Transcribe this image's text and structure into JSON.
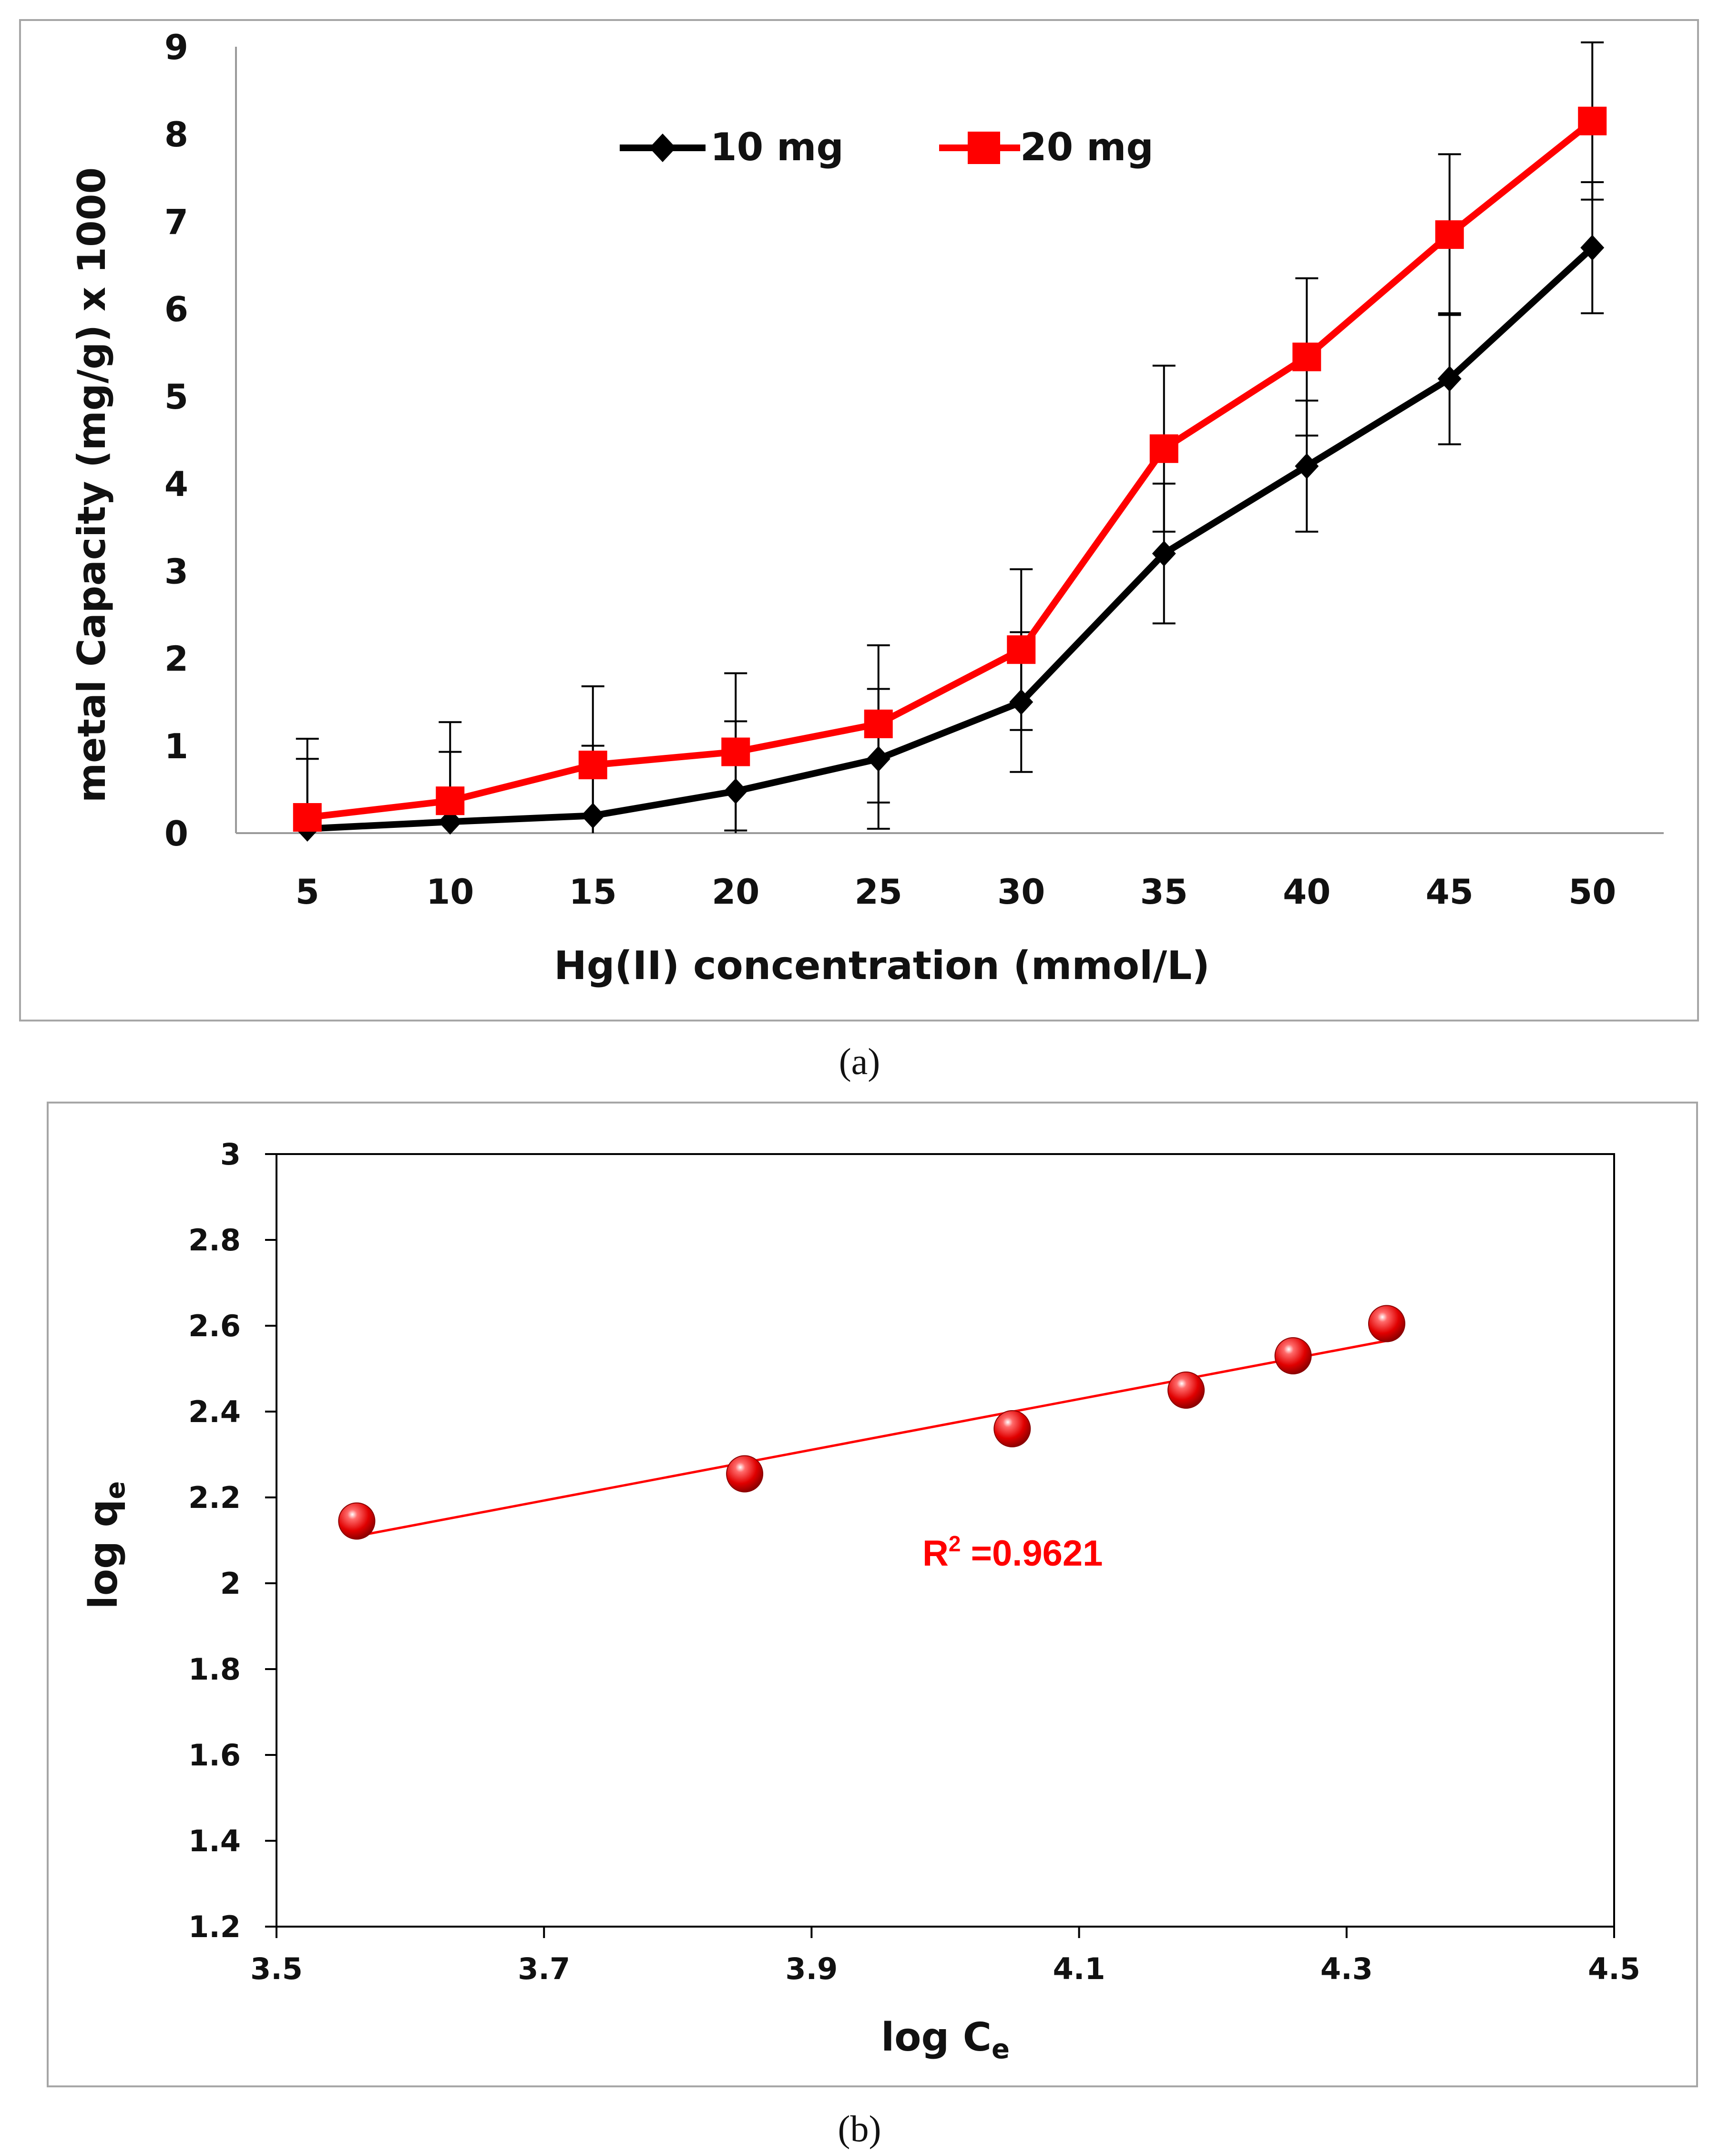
{
  "colors": {
    "series_10mg": "#000000",
    "series_20mg": "#ff0000",
    "fit_line": "#ff0000",
    "frame": "#a6a6a6",
    "grid_axis": "#9a9a9a"
  },
  "chart_data": [
    {
      "type": "line",
      "title": "",
      "xlabel": "Hg(II) concentration (mmol/L)",
      "ylabel": "metal Capacity (mg/g) x 1000",
      "categories": [
        "5",
        "10",
        "15",
        "20",
        "25",
        "30",
        "35",
        "40",
        "45",
        "50"
      ],
      "yticks": [
        "0",
        "1",
        "2",
        "3",
        "4",
        "5",
        "6",
        "7",
        "8",
        "9"
      ],
      "ylim": [
        0,
        9
      ],
      "legend_position": "top-center",
      "series": [
        {
          "name": "10 mg",
          "marker": "diamond",
          "values": [
            0.05,
            0.13,
            0.2,
            0.48,
            0.85,
            1.5,
            3.2,
            4.2,
            5.2,
            6.7
          ],
          "errors": [
            0.8,
            0.8,
            0.8,
            0.8,
            0.8,
            0.8,
            0.8,
            0.75,
            0.75,
            0.75
          ]
        },
        {
          "name": "20 mg",
          "marker": "square",
          "values": [
            0.18,
            0.37,
            0.78,
            0.93,
            1.25,
            2.1,
            4.4,
            5.45,
            6.85,
            8.15
          ],
          "errors": [
            0.9,
            0.9,
            0.9,
            0.9,
            0.9,
            0.92,
            0.95,
            0.9,
            0.92,
            0.9
          ]
        }
      ],
      "caption": "(a)"
    },
    {
      "type": "scatter",
      "title": "",
      "xlabel_main": "log C",
      "xlabel_sub": "e",
      "ylabel_main": "log q",
      "ylabel_sub": "e",
      "xticks": [
        "3.5",
        "3.7",
        "3.9",
        "4.1",
        "4.3",
        "4.5"
      ],
      "yticks": [
        "1.2",
        "1.4",
        "1.6",
        "1.8",
        "2",
        "2.2",
        "2.4",
        "2.6",
        "2.8",
        "3"
      ],
      "xlim": [
        3.5,
        4.5
      ],
      "ylim": [
        1.2,
        3.0
      ],
      "points": [
        {
          "x": 3.56,
          "y": 2.145
        },
        {
          "x": 3.85,
          "y": 2.255
        },
        {
          "x": 4.05,
          "y": 2.36
        },
        {
          "x": 4.18,
          "y": 2.45
        },
        {
          "x": 4.26,
          "y": 2.53
        },
        {
          "x": 4.33,
          "y": 2.605
        }
      ],
      "trendline": {
        "x_start": 3.56,
        "y_start": 2.11,
        "x_end": 4.33,
        "y_end": 2.565
      },
      "annotation_main": "R",
      "annotation_sup": "2",
      "annotation_value": " =0.9621",
      "caption": "(b)"
    }
  ]
}
